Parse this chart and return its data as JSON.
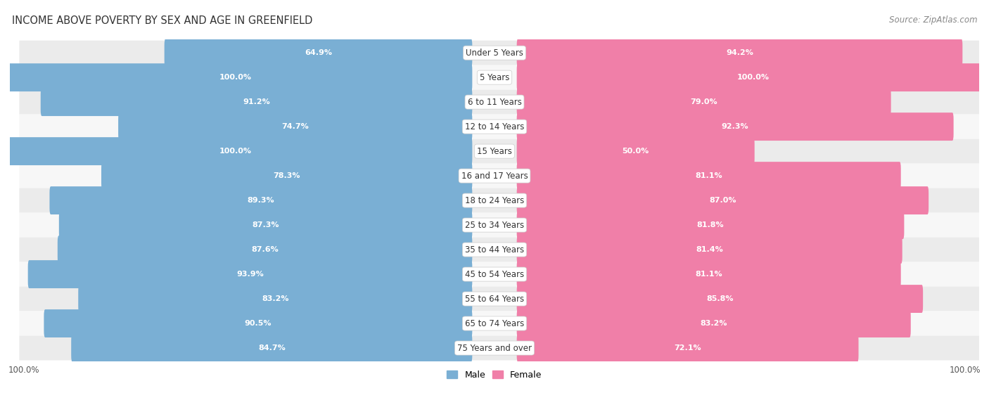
{
  "title": "INCOME ABOVE POVERTY BY SEX AND AGE IN GREENFIELD",
  "source": "Source: ZipAtlas.com",
  "categories": [
    "Under 5 Years",
    "5 Years",
    "6 to 11 Years",
    "12 to 14 Years",
    "15 Years",
    "16 and 17 Years",
    "18 to 24 Years",
    "25 to 34 Years",
    "35 to 44 Years",
    "45 to 54 Years",
    "55 to 64 Years",
    "65 to 74 Years",
    "75 Years and over"
  ],
  "male_values": [
    64.9,
    100.0,
    91.2,
    74.7,
    100.0,
    78.3,
    89.3,
    87.3,
    87.6,
    93.9,
    83.2,
    90.5,
    84.7
  ],
  "female_values": [
    94.2,
    100.0,
    79.0,
    92.3,
    50.0,
    81.1,
    87.0,
    81.8,
    81.4,
    81.1,
    85.8,
    83.2,
    72.1
  ],
  "male_color": "#7aafd4",
  "female_color": "#f07fa8",
  "male_color_light": "#aecfe8",
  "female_color_light": "#f7b8ce",
  "row_colors": [
    "#ebebeb",
    "#f7f7f7"
  ],
  "max_value": 100.0,
  "title_fontsize": 10.5,
  "source_fontsize": 8.5,
  "label_fontsize": 8,
  "cat_fontsize": 8.5,
  "tick_fontsize": 8.5
}
